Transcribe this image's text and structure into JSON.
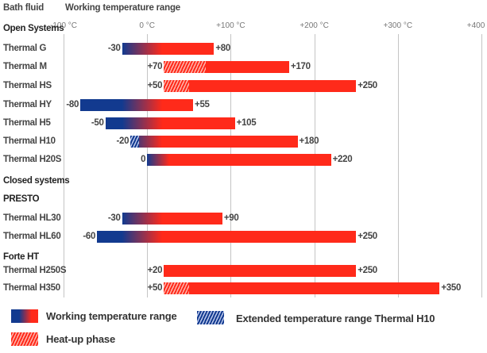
{
  "colors": {
    "cold": "#123a8f",
    "hot": "#ff2a1a",
    "grid": "#c4c4c4"
  },
  "chart_data": {
    "type": "bar",
    "subtype": "floating-range-horizontal",
    "header_left": "Bath fluid",
    "header_right": "Working temperature range",
    "xlim": [
      -100,
      400
    ],
    "x_ticks": [
      -100,
      0,
      100,
      200,
      300,
      400
    ],
    "x_tick_labels": [
      "-100 °C",
      "0 °C",
      "+100 °C",
      "+200 °C",
      "+300 °C",
      "+400 °C"
    ],
    "grid": true,
    "rows": [
      {
        "kind": "section",
        "label": "Open Systems",
        "tick_row": true
      },
      {
        "kind": "bar",
        "label": "Thermal G",
        "min": -30,
        "max": 80,
        "min_label": "-30",
        "max_label": "+80"
      },
      {
        "kind": "bar",
        "label": "Thermal M",
        "min": 20,
        "max": 170,
        "heatup_to": 70,
        "min_label": "+70",
        "max_label": "+170"
      },
      {
        "kind": "bar",
        "label": "Thermal HS",
        "min": 20,
        "max": 250,
        "heatup_to": 50,
        "min_label": "+50",
        "max_label": "+250"
      },
      {
        "kind": "bar",
        "label": "Thermal HY",
        "min": -80,
        "max": 55,
        "min_label": "-80",
        "max_label": "+55"
      },
      {
        "kind": "bar",
        "label": "Thermal H5",
        "min": -50,
        "max": 105,
        "min_label": "-50",
        "max_label": "+105"
      },
      {
        "kind": "bar",
        "label": "Thermal H10",
        "min": -20,
        "max": 180,
        "extended_to": -10,
        "min_label": "-20",
        "max_label": "+180"
      },
      {
        "kind": "bar",
        "label": "Thermal H20S",
        "min": 0,
        "max": 220,
        "min_label": "0",
        "max_label": "+220"
      },
      {
        "kind": "section",
        "label": "Closed systems"
      },
      {
        "kind": "section",
        "label": "PRESTO"
      },
      {
        "kind": "bar",
        "label": "Thermal HL30",
        "min": -30,
        "max": 90,
        "min_label": "-30",
        "max_label": "+90"
      },
      {
        "kind": "bar",
        "label": "Thermal HL60",
        "min": -60,
        "max": 250,
        "min_label": "-60",
        "max_label": "+250"
      },
      {
        "kind": "section",
        "label": "Forte HT"
      },
      {
        "kind": "bar",
        "label": "Thermal H250S",
        "min": 20,
        "max": 250,
        "min_label": "+20",
        "max_label": "+250"
      },
      {
        "kind": "bar",
        "label": "Thermal H350",
        "min": 20,
        "max": 350,
        "heatup_to": 50,
        "min_label": "+50",
        "max_label": "+350"
      }
    ],
    "legend": [
      {
        "key": "working",
        "label": "Working temperature range"
      },
      {
        "key": "heatup",
        "label": "Heat-up phase"
      },
      {
        "key": "extended",
        "label": "Extended temperature range Thermal H10"
      }
    ]
  }
}
